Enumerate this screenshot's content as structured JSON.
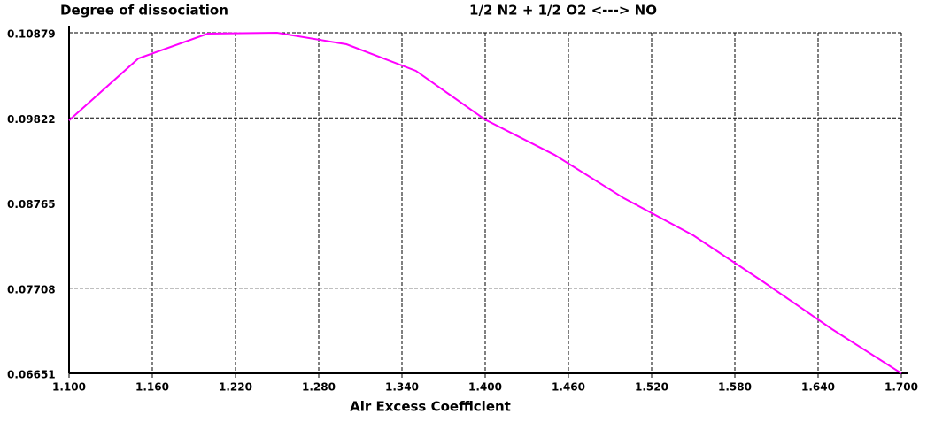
{
  "chart_data": {
    "type": "line",
    "title": "1/2 N2 + 1/2 O2 <---> NO",
    "y_label": "Degree of dissociation",
    "x_label": "Air Excess Coefficient",
    "x": [
      1.1,
      1.15,
      1.2,
      1.25,
      1.3,
      1.35,
      1.4,
      1.45,
      1.5,
      1.55,
      1.6,
      1.65,
      1.7
    ],
    "series": [
      {
        "name": "NO",
        "color": "#ff00ff",
        "values": [
          0.09791,
          0.1056,
          0.10868,
          0.10879,
          0.10736,
          0.10407,
          0.098,
          0.09363,
          0.08825,
          0.08364,
          0.07793,
          0.072,
          0.06651
        ]
      }
    ],
    "xlim": [
      1.1,
      1.7
    ],
    "xticks": [
      {
        "value": 1.1,
        "label": "1.100"
      },
      {
        "value": 1.16,
        "label": "1.160"
      },
      {
        "value": 1.22,
        "label": "1.220"
      },
      {
        "value": 1.28,
        "label": "1.280"
      },
      {
        "value": 1.34,
        "label": "1.340"
      },
      {
        "value": 1.4,
        "label": "1.400"
      },
      {
        "value": 1.46,
        "label": "1.460"
      },
      {
        "value": 1.52,
        "label": "1.520"
      },
      {
        "value": 1.58,
        "label": "1.580"
      },
      {
        "value": 1.64,
        "label": "1.640"
      },
      {
        "value": 1.7,
        "label": "1.700"
      }
    ],
    "ylim": [
      0.06651,
      0.10879
    ],
    "yticks": [
      0.06651,
      0.07708,
      0.08765,
      0.09822,
      0.10879
    ],
    "grid": true
  }
}
